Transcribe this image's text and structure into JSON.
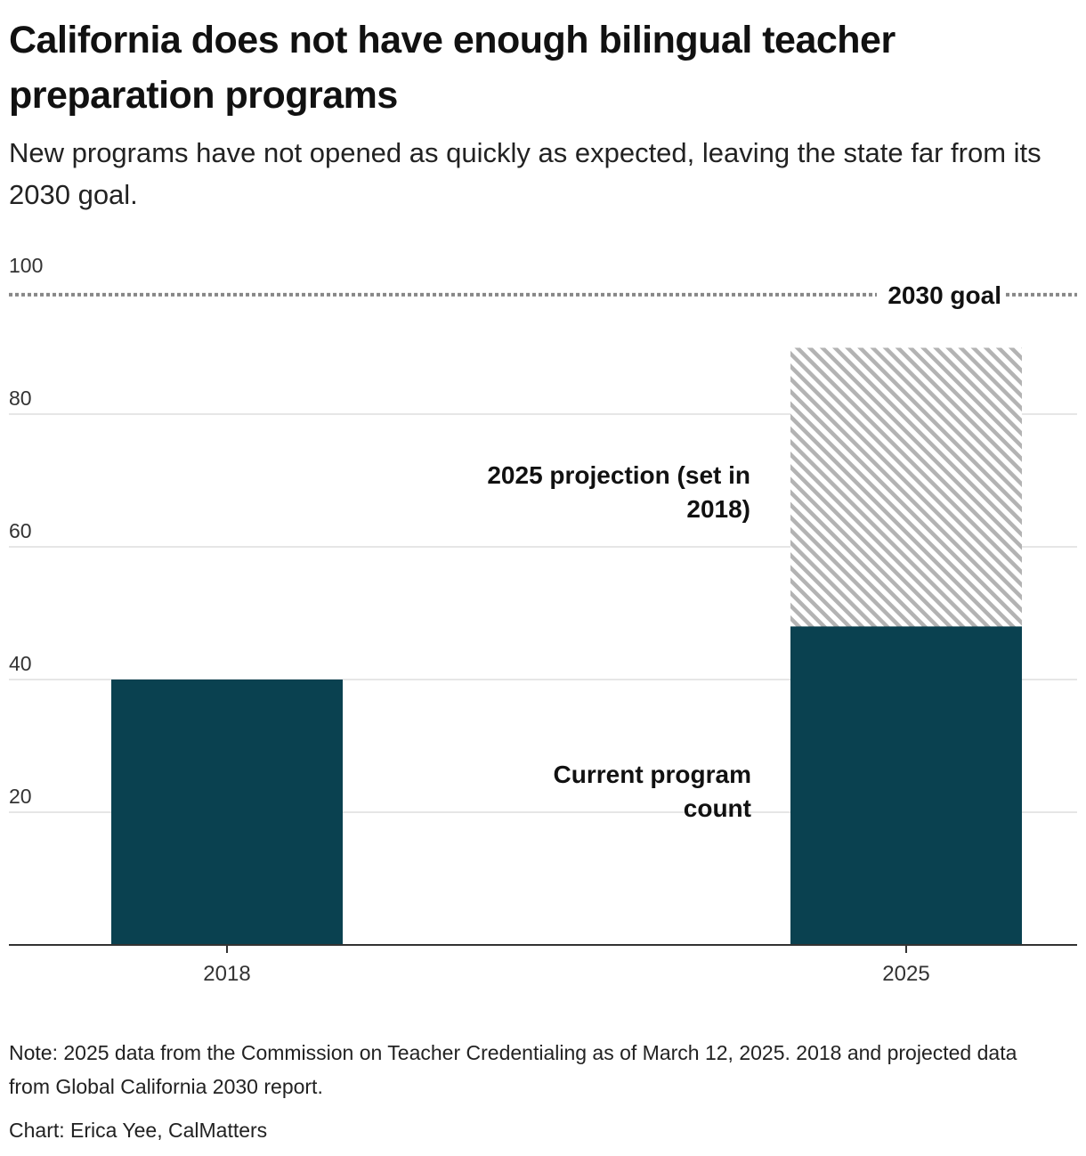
{
  "header": {
    "title": "California does not have enough bilingual teacher preparation programs",
    "subtitle": "New programs have not opened as quickly as expected, leaving the state far from its 2030 goal."
  },
  "chart_data": {
    "type": "bar",
    "categories": [
      "2018",
      "2025"
    ],
    "series": [
      {
        "name": "Current program count",
        "values": [
          40,
          48
        ],
        "color": "#0a4150"
      },
      {
        "name": "2025 projection (set in 2018)",
        "values": [
          null,
          90
        ],
        "color": "#b3b3b3",
        "pattern": "diagonal-hatch"
      }
    ],
    "reference_line": {
      "label": "2030 goal",
      "value": 98,
      "style": "dotted",
      "color": "#888888"
    },
    "y_ticks": [
      20,
      40,
      60,
      80,
      100
    ],
    "ylim": [
      0,
      100
    ],
    "grid": true,
    "annotations": {
      "projection": [
        "2025 projection (set in",
        "2018)"
      ],
      "current": [
        "Current program",
        "count"
      ]
    },
    "xlabel": "",
    "ylabel": ""
  },
  "footer": {
    "note": "Note: 2025 data from the Commission on Teacher Credentialing as of March 12, 2025. 2018 and projected data from Global California 2030 report.",
    "credit": "Chart: Erica Yee, CalMatters"
  }
}
